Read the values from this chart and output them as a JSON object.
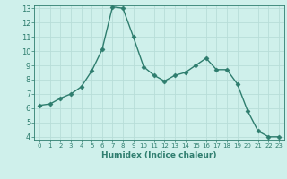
{
  "x": [
    0,
    1,
    2,
    3,
    4,
    5,
    6,
    7,
    8,
    9,
    10,
    11,
    12,
    13,
    14,
    15,
    16,
    17,
    18,
    19,
    20,
    21,
    22,
    23
  ],
  "y": [
    6.2,
    6.3,
    6.7,
    7.0,
    7.5,
    8.6,
    10.1,
    13.1,
    13.0,
    11.0,
    8.9,
    8.3,
    7.9,
    8.3,
    8.5,
    9.0,
    9.5,
    8.7,
    8.7,
    7.7,
    5.8,
    4.4,
    4.0,
    4.0
  ],
  "xlabel": "Humidex (Indice chaleur)",
  "ylim": [
    4,
    13
  ],
  "xlim": [
    0,
    23
  ],
  "yticks": [
    4,
    5,
    6,
    7,
    8,
    9,
    10,
    11,
    12,
    13
  ],
  "xticks": [
    0,
    1,
    2,
    3,
    4,
    5,
    6,
    7,
    8,
    9,
    10,
    11,
    12,
    13,
    14,
    15,
    16,
    17,
    18,
    19,
    20,
    21,
    22,
    23
  ],
  "line_color": "#2e7d6e",
  "marker_color": "#2e7d6e",
  "bg_color": "#cff0eb",
  "grid_color": "#b8ddd8",
  "tick_label_color": "#2e7d6e",
  "xlabel_color": "#2e7d6e"
}
